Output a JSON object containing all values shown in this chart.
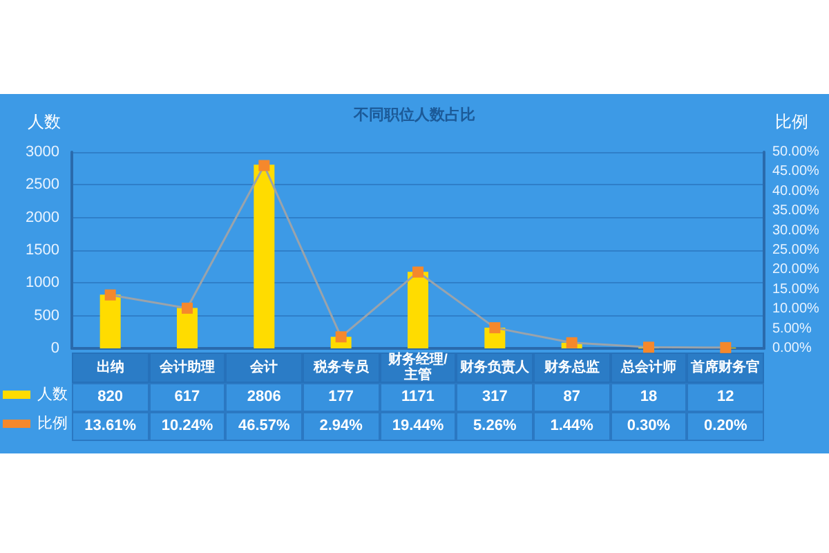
{
  "chart_data": {
    "type": "bar",
    "title": "不同职位人数占比",
    "ylabel": "人数",
    "y2label": "比例",
    "categories": [
      "出纳",
      "会计助理",
      "会计",
      "税务专员",
      "财务经理/主管",
      "财务负责人",
      "财务总监",
      "总会计师",
      "首席财务官"
    ],
    "series": [
      {
        "name": "人数",
        "color": "#ffdc00",
        "values": [
          820,
          617,
          2806,
          177,
          1171,
          317,
          87,
          18,
          12
        ],
        "value_labels": [
          "820",
          "617",
          "2806",
          "177",
          "1171",
          "317",
          "87",
          "18",
          "12"
        ]
      },
      {
        "name": "比例",
        "type": "line",
        "axis": "y2",
        "color": "#f5882c",
        "values": [
          13.61,
          10.24,
          46.57,
          2.94,
          19.44,
          5.26,
          1.44,
          0.3,
          0.2
        ],
        "value_labels": [
          "13.61%",
          "10.24%",
          "46.57%",
          "2.94%",
          "19.44%",
          "5.26%",
          "1.44%",
          "0.30%",
          "0.20%"
        ]
      }
    ],
    "ylim": [
      0,
      3000
    ],
    "yticks": [
      0,
      500,
      1000,
      1500,
      2000,
      2500,
      3000
    ],
    "y2lim": [
      0,
      50
    ],
    "y2ticks": [
      {
        "value": 0,
        "label": "0.00%"
      },
      {
        "value": 5,
        "label": "5.00%"
      },
      {
        "value": 10,
        "label": "10.00%"
      },
      {
        "value": 15,
        "label": "15.00%"
      },
      {
        "value": 20,
        "label": "20.00%"
      },
      {
        "value": 25,
        "label": "25.00%"
      },
      {
        "value": 30,
        "label": "30.00%"
      },
      {
        "value": 35,
        "label": "35.00%"
      },
      {
        "value": 40,
        "label": "40.00%"
      },
      {
        "value": 45,
        "label": "45.00%"
      },
      {
        "value": 50,
        "label": "50.00%"
      }
    ],
    "grid": "y",
    "legend": "bottom left",
    "marker": "square"
  }
}
